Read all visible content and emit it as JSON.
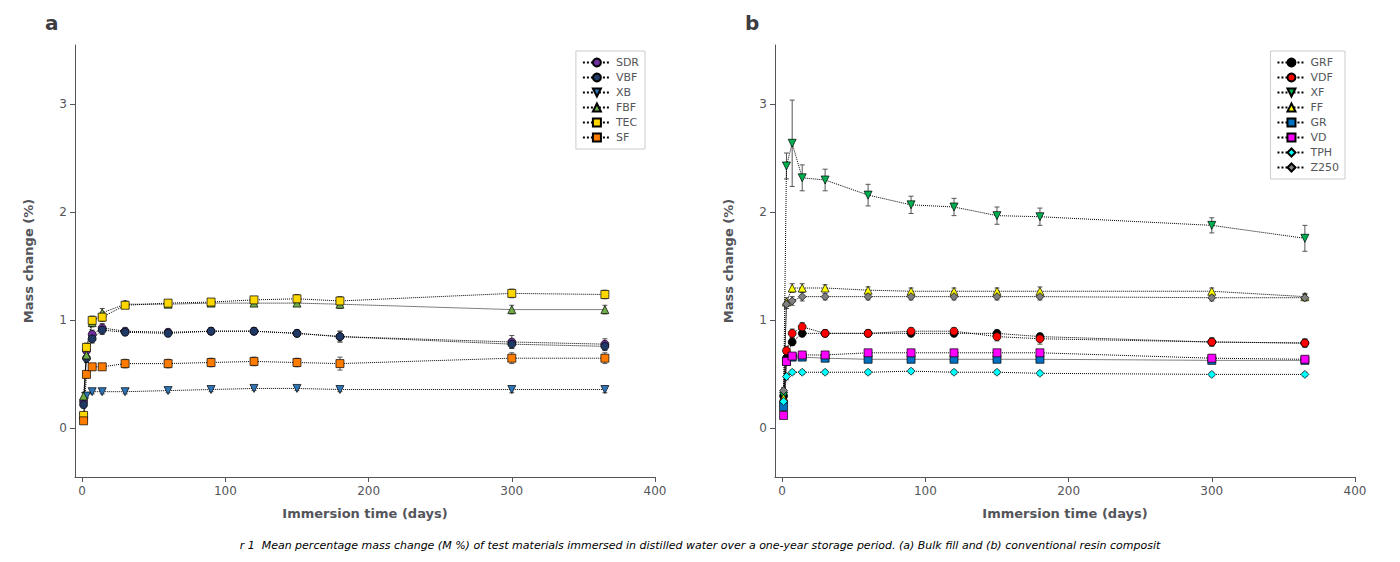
{
  "chart_data": [
    {
      "type": "line",
      "title": "a",
      "xlabel": "Immersion time (days)",
      "ylabel": "Mass change (%)",
      "xlim": [
        -5,
        400
      ],
      "ylim": [
        -0.45,
        3.55
      ],
      "xticks": [
        0,
        100,
        200,
        300,
        400
      ],
      "yticks": [
        0,
        1,
        2,
        3
      ],
      "grid": false,
      "legend": "upper right",
      "line_style": "dotted",
      "x": [
        1,
        3,
        7,
        14,
        30,
        60,
        90,
        120,
        150,
        180,
        300,
        365
      ],
      "series": [
        {
          "name": "SDR",
          "color": "#7030A0",
          "marker": "circle",
          "values": [
            0.25,
            0.72,
            0.87,
            0.93,
            0.9,
            0.89,
            0.9,
            0.9,
            0.88,
            0.85,
            0.8,
            0.78
          ],
          "yerr": [
            0.04,
            0.04,
            0.04,
            0.04,
            0.03,
            0.03,
            0.03,
            0.03,
            0.03,
            0.05,
            0.06,
            0.05
          ]
        },
        {
          "name": "VBF",
          "color": "#1F3864",
          "marker": "circle",
          "values": [
            0.22,
            0.65,
            0.83,
            0.91,
            0.89,
            0.88,
            0.9,
            0.9,
            0.88,
            0.85,
            0.78,
            0.76
          ],
          "yerr": [
            0.03,
            0.04,
            0.04,
            0.04,
            0.03,
            0.03,
            0.03,
            0.03,
            0.03,
            0.05,
            0.04,
            0.04
          ]
        },
        {
          "name": "XB",
          "color": "#2E75B6",
          "marker": "triangle_down",
          "values": [
            0.1,
            0.3,
            0.34,
            0.34,
            0.34,
            0.35,
            0.36,
            0.37,
            0.37,
            0.36,
            0.36,
            0.36
          ],
          "yerr": [
            0.02,
            0.02,
            0.02,
            0.02,
            0.02,
            0.02,
            0.02,
            0.02,
            0.02,
            0.02,
            0.03,
            0.03
          ]
        },
        {
          "name": "FBF",
          "color": "#70AD47",
          "marker": "triangle_up",
          "values": [
            0.3,
            0.68,
            0.98,
            1.07,
            1.15,
            1.15,
            1.16,
            1.16,
            1.16,
            1.15,
            1.1,
            1.1
          ],
          "yerr": [
            0.03,
            0.04,
            0.04,
            0.04,
            0.03,
            0.03,
            0.03,
            0.03,
            0.03,
            0.04,
            0.04,
            0.04
          ]
        },
        {
          "name": "TEC",
          "color": "#FFD700",
          "marker": "square",
          "values": [
            0.12,
            0.75,
            1.0,
            1.03,
            1.14,
            1.16,
            1.17,
            1.19,
            1.2,
            1.18,
            1.25,
            1.24
          ],
          "yerr": [
            0.02,
            0.04,
            0.04,
            0.04,
            0.03,
            0.03,
            0.03,
            0.03,
            0.04,
            0.04,
            0.04,
            0.04
          ]
        },
        {
          "name": "SF",
          "color": "#FF7C00",
          "marker": "square",
          "values": [
            0.07,
            0.5,
            0.57,
            0.57,
            0.6,
            0.6,
            0.61,
            0.62,
            0.61,
            0.6,
            0.65,
            0.65
          ],
          "yerr": [
            0.01,
            0.03,
            0.03,
            0.03,
            0.04,
            0.04,
            0.04,
            0.04,
            0.04,
            0.06,
            0.05,
            0.05
          ]
        }
      ]
    },
    {
      "type": "line",
      "title": "b",
      "xlabel": "Immersion time (days)",
      "ylabel": "Mass change (%)",
      "xlim": [
        -5,
        400
      ],
      "ylim": [
        -0.45,
        3.55
      ],
      "xticks": [
        0,
        100,
        200,
        300,
        400
      ],
      "yticks": [
        0,
        1,
        2,
        3
      ],
      "grid": false,
      "legend": "upper right",
      "line_style": "dotted",
      "x": [
        1,
        3,
        7,
        14,
        30,
        60,
        90,
        120,
        150,
        180,
        300,
        365
      ],
      "series": [
        {
          "name": "GRF",
          "color": "#000000",
          "marker": "circle",
          "values": [
            0.3,
            0.65,
            0.8,
            0.88,
            0.88,
            0.88,
            0.88,
            0.88,
            0.88,
            0.85,
            0.8,
            0.79
          ],
          "yerr": [
            0.03,
            0.03,
            0.03,
            0.03,
            0.03,
            0.03,
            0.03,
            0.03,
            0.03,
            0.03,
            0.03,
            0.03
          ]
        },
        {
          "name": "VDF",
          "color": "#FF0000",
          "marker": "circle",
          "values": [
            0.25,
            0.72,
            0.88,
            0.94,
            0.88,
            0.88,
            0.9,
            0.9,
            0.85,
            0.83,
            0.8,
            0.79
          ],
          "yerr": [
            0.03,
            0.04,
            0.04,
            0.04,
            0.03,
            0.03,
            0.03,
            0.03,
            0.04,
            0.05,
            0.04,
            0.04
          ]
        },
        {
          "name": "XF",
          "color": "#00B050",
          "marker": "triangle_down",
          "values": [
            0.3,
            2.43,
            2.64,
            2.32,
            2.3,
            2.16,
            2.07,
            2.05,
            1.97,
            1.96,
            1.88,
            1.76
          ],
          "yerr": [
            0.05,
            0.12,
            0.4,
            0.12,
            0.1,
            0.1,
            0.08,
            0.08,
            0.08,
            0.08,
            0.07,
            0.12
          ]
        },
        {
          "name": "FF",
          "color": "#FFFF00",
          "marker": "triangle_up",
          "values": [
            0.28,
            1.17,
            1.3,
            1.3,
            1.3,
            1.28,
            1.27,
            1.27,
            1.27,
            1.27,
            1.27,
            1.22
          ],
          "yerr": [
            0.03,
            0.04,
            0.04,
            0.04,
            0.03,
            0.03,
            0.03,
            0.03,
            0.03,
            0.04,
            0.03,
            0.03
          ]
        },
        {
          "name": "GR",
          "color": "#0070C0",
          "marker": "square",
          "values": [
            0.2,
            0.62,
            0.66,
            0.66,
            0.65,
            0.64,
            0.64,
            0.64,
            0.64,
            0.64,
            0.63,
            0.63
          ],
          "yerr": [
            0.02,
            0.03,
            0.03,
            0.03,
            0.02,
            0.02,
            0.02,
            0.02,
            0.02,
            0.03,
            0.03,
            0.03
          ]
        },
        {
          "name": "VD",
          "color": "#FF00FF",
          "marker": "square",
          "values": [
            0.12,
            0.62,
            0.67,
            0.68,
            0.68,
            0.7,
            0.7,
            0.7,
            0.7,
            0.7,
            0.65,
            0.64
          ],
          "yerr": [
            0.02,
            0.03,
            0.03,
            0.03,
            0.03,
            0.03,
            0.03,
            0.03,
            0.03,
            0.03,
            0.03,
            0.03
          ]
        },
        {
          "name": "TPH",
          "color": "#00FFFF",
          "marker": "diamond",
          "values": [
            0.25,
            0.48,
            0.52,
            0.52,
            0.52,
            0.52,
            0.53,
            0.52,
            0.52,
            0.51,
            0.5,
            0.5
          ],
          "yerr": [
            0.02,
            0.03,
            0.02,
            0.02,
            0.02,
            0.02,
            0.02,
            0.02,
            0.02,
            0.02,
            0.02,
            0.02
          ]
        },
        {
          "name": "Z250",
          "color": "#808080",
          "marker": "diamond",
          "values": [
            0.35,
            1.15,
            1.18,
            1.22,
            1.22,
            1.22,
            1.22,
            1.22,
            1.22,
            1.22,
            1.21,
            1.21
          ],
          "yerr": [
            0.03,
            0.04,
            0.04,
            0.04,
            0.03,
            0.03,
            0.03,
            0.03,
            0.03,
            0.03,
            0.03,
            0.03
          ]
        }
      ]
    }
  ],
  "caption": "r 1  Mean percentage mass change (M %) of test materials immersed in distilled water over a one-year storage period. (a) Bulk fill and (b) conventional resin composit"
}
